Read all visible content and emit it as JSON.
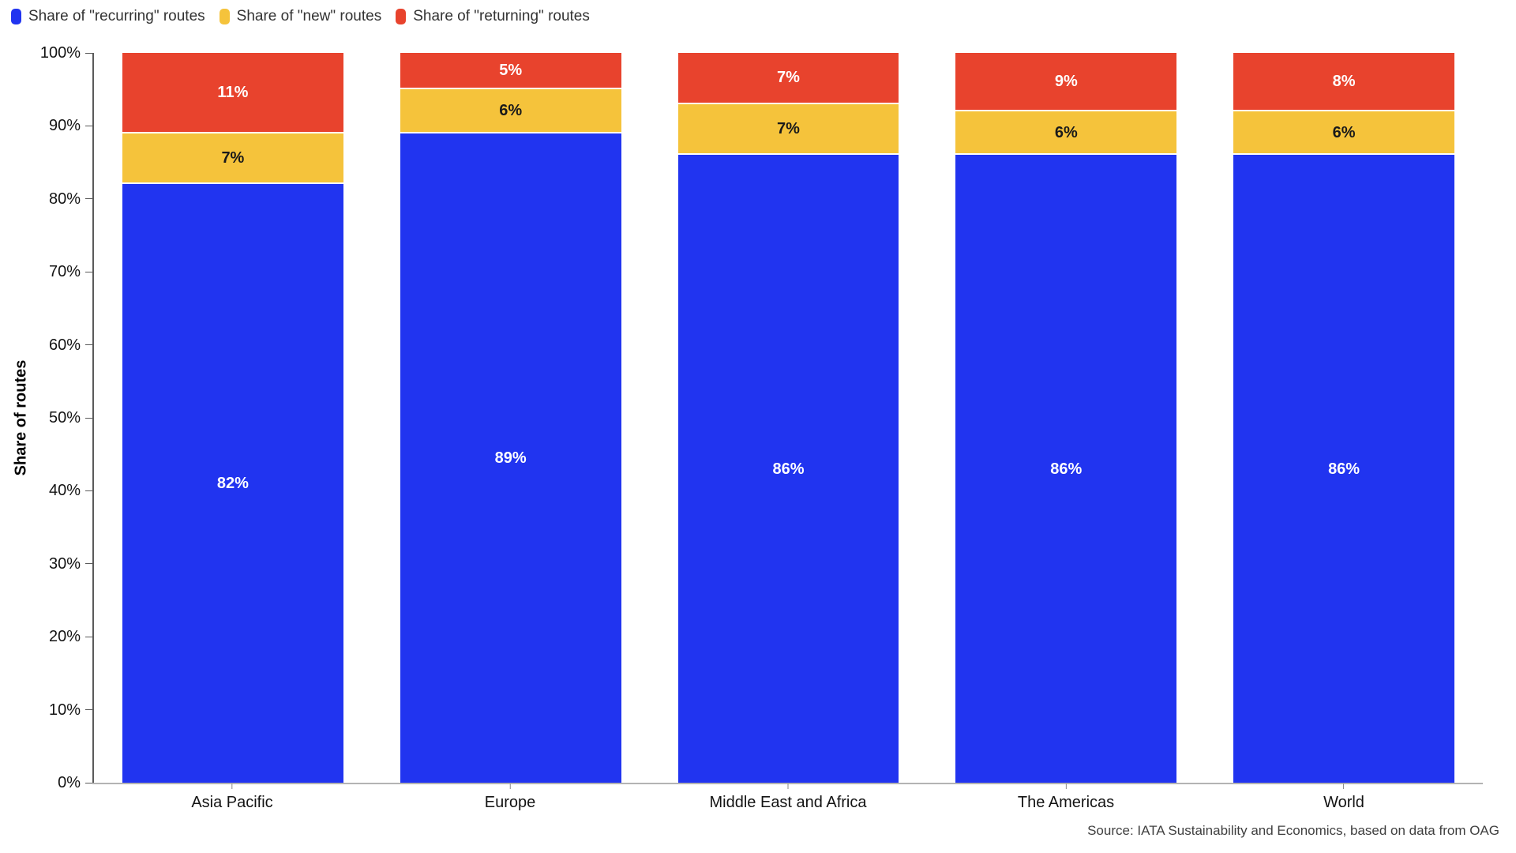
{
  "source_note": "Source: IATA Sustainability and Economics, based on data from OAG",
  "chart_data": {
    "type": "bar",
    "stacked": true,
    "title": "",
    "xlabel": "",
    "ylabel": "Share of routes",
    "ylim": [
      0,
      100
    ],
    "ytick_step": 10,
    "ytick_suffix": "%",
    "grid": false,
    "legend_position": "top-left",
    "categories": [
      "Asia Pacific",
      "Europe",
      "Middle East and Africa",
      "The Americas",
      "World"
    ],
    "series": [
      {
        "name": "Share of \"recurring\" routes",
        "color": "#2134f0",
        "label_color": "#ffffff",
        "values": [
          82,
          89,
          86,
          86,
          86
        ]
      },
      {
        "name": "Share of \"new\" routes",
        "color": "#f5c33b",
        "label_color": "#1a1a1a",
        "values": [
          7,
          6,
          7,
          6,
          6
        ]
      },
      {
        "name": "Share of \"returning\" routes",
        "color": "#e8432d",
        "label_color": "#ffffff",
        "values": [
          11,
          5,
          7,
          9,
          8
        ]
      }
    ],
    "value_suffix": "%"
  }
}
